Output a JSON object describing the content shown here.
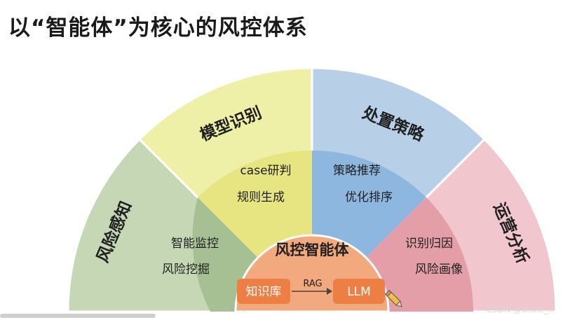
{
  "title": "以“智能体”为核心的风控体系",
  "colors": {
    "risk_perception_outer": "#c6d7b5",
    "risk_perception_inner": "#a6bf93",
    "model_recognition_outer": "#eef0a8",
    "model_recognition_inner": "#e7e482",
    "strategy_outer": "#b7d0e8",
    "strategy_inner": "#8db7df",
    "operation_outer": "#f1c6cc",
    "operation_inner": "#e39ea8",
    "core": "#f3a97e",
    "pill": "#ee7f44"
  },
  "sectors": [
    {
      "id": "risk-perception",
      "label": "风险感知",
      "items": [
        "智能监控",
        "风险挖掘"
      ]
    },
    {
      "id": "model-recognition",
      "label": "模型识别",
      "items": [
        "case研判",
        "规则生成"
      ]
    },
    {
      "id": "strategy",
      "label": "处置策略",
      "items": [
        "策略推荐",
        "优化排序"
      ]
    },
    {
      "id": "operation-analysis",
      "label": "运营分析",
      "items": [
        "识别归因",
        "风险画像"
      ]
    }
  ],
  "core": {
    "label": "风控智能体",
    "knowledge_base": "知识库",
    "arrow_label": "RAG",
    "llm": "LLM",
    "icon": "pencil-icon"
  },
  "watermark": "CSDN @uncle_ll"
}
